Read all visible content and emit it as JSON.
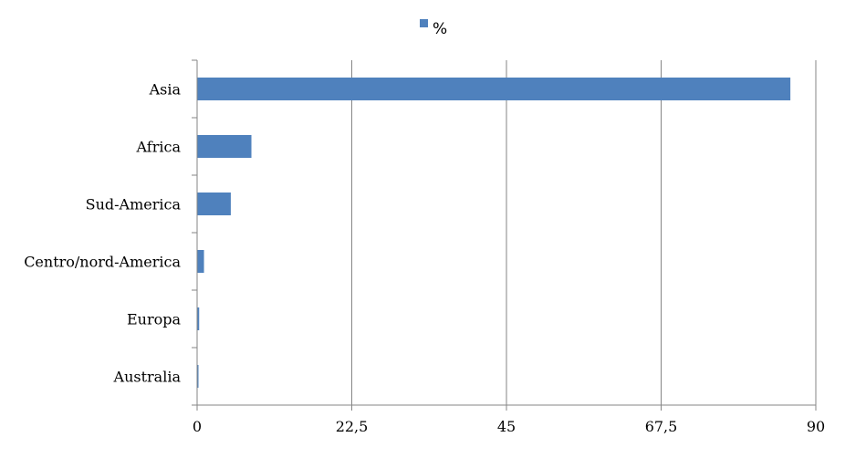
{
  "chart_data": {
    "type": "bar",
    "orientation": "horizontal",
    "categories": [
      "Asia",
      "Africa",
      "Sud-America",
      "Centro/nord-America",
      "Europa",
      "Australia"
    ],
    "series": [
      {
        "name": "%",
        "color": "#4f81bd",
        "values": [
          86.3,
          7.9,
          4.9,
          1.0,
          0.3,
          0.2
        ]
      }
    ],
    "xticks": [
      "0",
      "22,5",
      "45",
      "67,5",
      "90"
    ],
    "xtick_values": [
      0,
      22.5,
      45,
      67.5,
      90
    ],
    "xlim": [
      0,
      90
    ],
    "grid": "vertical",
    "legend_position": "top"
  }
}
